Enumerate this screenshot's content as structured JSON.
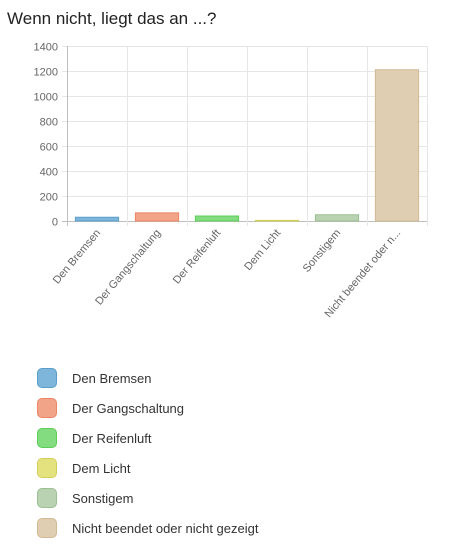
{
  "title": "Wenn nicht, liegt das an ...?",
  "chart_data": {
    "type": "bar",
    "title": "Wenn nicht, liegt das an ...?",
    "xlabel": "",
    "ylabel": "",
    "ylim": [
      0,
      1400
    ],
    "yticks": [
      0,
      200,
      400,
      600,
      800,
      1000,
      1200,
      1400
    ],
    "grid": true,
    "legend_position": "bottom",
    "categories": [
      "Den Bremsen",
      "Der Gangschaltung",
      "Der Reifenluft",
      "Dem Licht",
      "Sonstigem",
      "Nicht beendet oder nicht gezeigt"
    ],
    "tick_labels": [
      "Den Bremsen",
      "Der Gangschaltung",
      "Der Reifenluft",
      "Dem Licht",
      "Sonstigem",
      "Nicht beendet oder n..."
    ],
    "values": [
      30,
      65,
      40,
      5,
      50,
      1210
    ],
    "colors": [
      "#7eb6db",
      "#f2a488",
      "#84dc80",
      "#e4e27e",
      "#b9d2b2",
      "#e0ceb2"
    ],
    "borders": [
      "#5a9fcc",
      "#ec8566",
      "#5ccd57",
      "#d3d05a",
      "#9cbf93",
      "#d0b993"
    ]
  },
  "legend": [
    {
      "label": "Den Bremsen",
      "color": "#7eb6db"
    },
    {
      "label": "Der Gangschaltung",
      "color": "#f2a488"
    },
    {
      "label": "Der Reifenluft",
      "color": "#84dc80"
    },
    {
      "label": "Dem Licht",
      "color": "#e4e27e"
    },
    {
      "label": "Sonstigem",
      "color": "#b9d2b2"
    },
    {
      "label": "Nicht beendet oder nicht gezeigt",
      "color": "#e0ceb2"
    }
  ]
}
